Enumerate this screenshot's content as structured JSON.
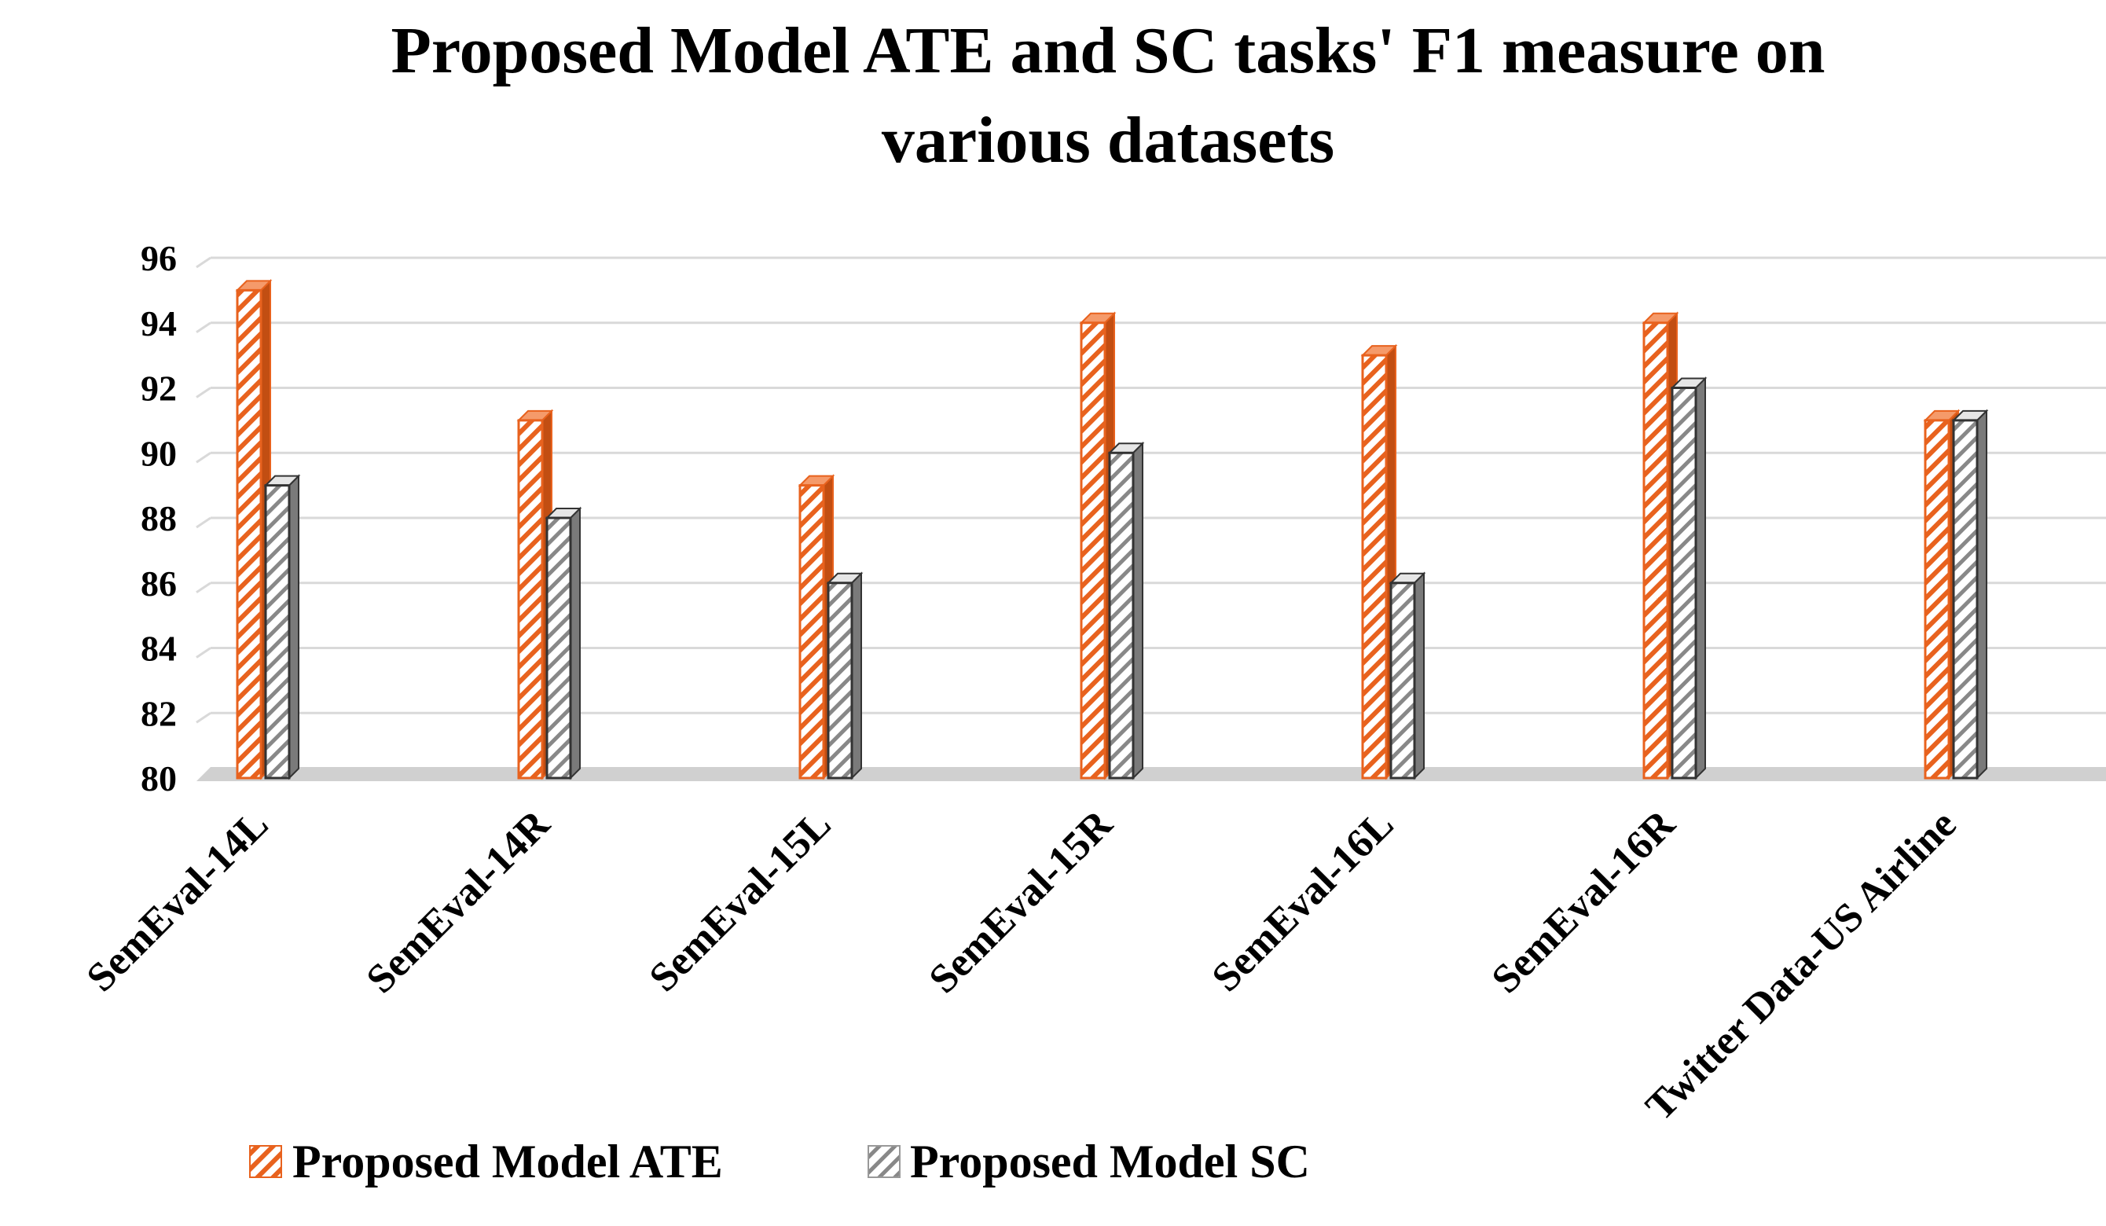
{
  "chart_data": {
    "type": "bar",
    "title_lines": [
      "Proposed Model ATE and SC tasks' F1 measure on",
      "various datasets"
    ],
    "categories": [
      "SemEval-14L",
      "SemEval-14R",
      "SemEval-15L",
      "SemEval-15R",
      "SemEval-16L",
      "SemEval-16R",
      "Twitter Data-US Airline"
    ],
    "series": [
      {
        "name": "Proposed Model ATE",
        "values": [
          95,
          91,
          89,
          94,
          93,
          94,
          91
        ],
        "color": "#E8621E",
        "pattern": "diagonal-hatch"
      },
      {
        "name": "Proposed Model SC",
        "values": [
          89,
          88,
          86,
          90,
          86,
          92,
          91
        ],
        "color": "#555555",
        "pattern": "diagonal-hatch"
      }
    ],
    "yticks": [
      96,
      94,
      92,
      90,
      88,
      86,
      84,
      82,
      80
    ],
    "ylim": [
      80,
      96
    ],
    "grid": true,
    "legend_position": "bottom"
  }
}
